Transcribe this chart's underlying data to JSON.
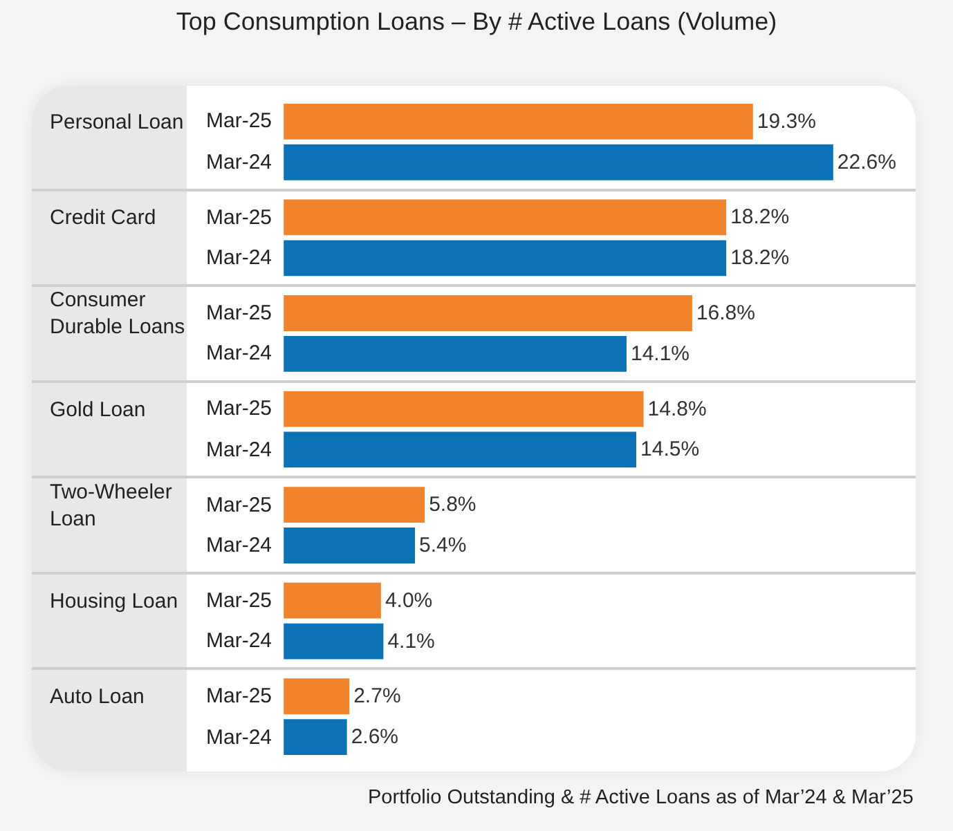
{
  "chart_data": {
    "type": "bar",
    "orientation": "horizontal",
    "title": "Top Consumption Loans – By # Active Loans (Volume)",
    "categories": [
      "Personal Loan",
      "Credit Card",
      "Consumer Durable Loans",
      "Gold Loan",
      "Two-Wheeler Loan",
      "Housing Loan",
      "Auto Loan"
    ],
    "series": [
      {
        "name": "Mar-25",
        "color": "#f0832b",
        "values": [
          19.3,
          18.2,
          16.8,
          14.8,
          5.8,
          4.0,
          2.7
        ],
        "value_labels": [
          "19.3%",
          "18.2%",
          "16.8%",
          "14.8%",
          "5.8%",
          "4.0%",
          "2.7%"
        ]
      },
      {
        "name": "Mar-24",
        "color": "#0b72b5",
        "values": [
          22.6,
          18.2,
          14.1,
          14.5,
          5.4,
          4.1,
          2.6
        ],
        "value_labels": [
          "22.6%",
          "18.2%",
          "14.1%",
          "14.5%",
          "5.4%",
          "4.1%",
          "2.6%"
        ]
      }
    ],
    "grid": "y",
    "tick_labels": "y",
    "annotations": [
      "Portfolio Outstanding & # Active Loans as of Mar’24 & Mar’25"
    ]
  }
}
